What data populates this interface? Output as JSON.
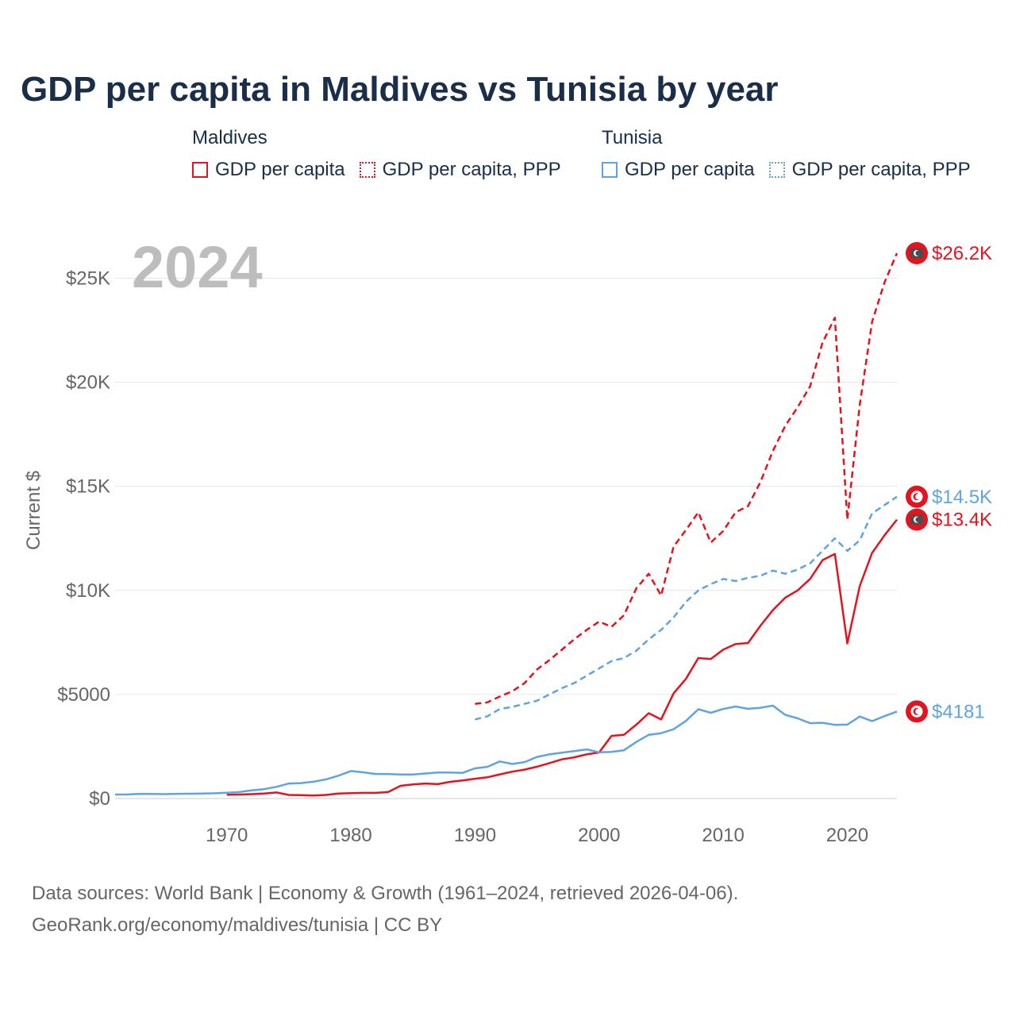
{
  "title": "GDP per capita in Maldives vs Tunisia by year",
  "legend": {
    "groups": [
      {
        "country": "Maldives",
        "color": "#e3131f",
        "items": [
          {
            "label": "GDP per capita",
            "style": "solid"
          },
          {
            "label": "GDP per capita, PPP",
            "style": "dotted"
          }
        ]
      },
      {
        "country": "Tunisia",
        "color": "#5fa4e0",
        "items": [
          {
            "label": "GDP per capita",
            "style": "solid"
          },
          {
            "label": "GDP per capita, PPP",
            "style": "dotted"
          }
        ]
      }
    ]
  },
  "watermark_year": "2024",
  "footer": {
    "line1": "Data sources: World Bank | Economy & Growth (1961–2024, retrieved 2026-04-06).",
    "line2": "GeoRank.org/economy/maldives/tunisia | CC BY"
  },
  "chart_data": {
    "type": "line",
    "title": "GDP per capita in Maldives vs Tunisia by year",
    "xlabel": "",
    "ylabel": "Current $",
    "xlim": [
      1961,
      2024
    ],
    "ylim": [
      0,
      27000
    ],
    "x_ticks": [
      1970,
      1980,
      1990,
      2000,
      2010,
      2020
    ],
    "y_ticks": [
      {
        "value": 0,
        "label": "$0"
      },
      {
        "value": 5000,
        "label": "$5000"
      },
      {
        "value": 10000,
        "label": "$10K"
      },
      {
        "value": 15000,
        "label": "$15K"
      },
      {
        "value": 20000,
        "label": "$20K"
      },
      {
        "value": 25000,
        "label": "$25K"
      }
    ],
    "grid": true,
    "series": [
      {
        "name": "Maldives GDP per capita, PPP",
        "country": "Maldives",
        "color": "#e3131f",
        "dash": true,
        "end_label": "$26.2K",
        "flag": "mv",
        "x": [
          1990,
          1991,
          1992,
          1993,
          1994,
          1995,
          1996,
          1997,
          1998,
          1999,
          2000,
          2001,
          2002,
          2003,
          2004,
          2005,
          2006,
          2007,
          2008,
          2009,
          2010,
          2011,
          2012,
          2013,
          2014,
          2015,
          2016,
          2017,
          2018,
          2019,
          2020,
          2021,
          2022,
          2023,
          2024
        ],
        "y": [
          4550,
          4620,
          4900,
          5150,
          5550,
          6200,
          6650,
          7150,
          7650,
          8100,
          8500,
          8250,
          8800,
          10100,
          10800,
          9750,
          12100,
          12900,
          13750,
          12300,
          12850,
          13750,
          14050,
          15200,
          16700,
          17900,
          18800,
          19800,
          21900,
          23100,
          13400,
          18900,
          22900,
          24800,
          26200
        ]
      },
      {
        "name": "Tunisia GDP per capita, PPP",
        "country": "Tunisia",
        "color": "#5fa4e0",
        "dash": true,
        "end_label": "$14.5K",
        "flag": "tn",
        "x": [
          1990,
          1991,
          1992,
          1993,
          1994,
          1995,
          1996,
          1997,
          1998,
          1999,
          2000,
          2001,
          2002,
          2003,
          2004,
          2005,
          2006,
          2007,
          2008,
          2009,
          2010,
          2011,
          2012,
          2013,
          2014,
          2015,
          2016,
          2017,
          2018,
          2019,
          2020,
          2021,
          2022,
          2023,
          2024
        ],
        "y": [
          3800,
          3950,
          4300,
          4400,
          4550,
          4700,
          5000,
          5300,
          5550,
          5900,
          6250,
          6600,
          6750,
          7100,
          7650,
          8100,
          8700,
          9450,
          10000,
          10300,
          10550,
          10450,
          10600,
          10700,
          10950,
          10800,
          11000,
          11300,
          11900,
          12500,
          11900,
          12400,
          13700,
          14100,
          14500
        ]
      },
      {
        "name": "Maldives GDP per capita",
        "country": "Maldives",
        "color": "#e3131f",
        "dash": false,
        "end_label": "$13.4K",
        "flag": "mv",
        "x": [
          1970,
          1971,
          1972,
          1973,
          1974,
          1975,
          1976,
          1977,
          1978,
          1979,
          1980,
          1981,
          1982,
          1983,
          1984,
          1985,
          1986,
          1987,
          1988,
          1989,
          1990,
          1991,
          1992,
          1993,
          1994,
          1995,
          1996,
          1997,
          1998,
          1999,
          2000,
          2001,
          2002,
          2003,
          2004,
          2005,
          2006,
          2007,
          2008,
          2009,
          2010,
          2011,
          2012,
          2013,
          2014,
          2015,
          2016,
          2017,
          2018,
          2019,
          2020,
          2021,
          2022,
          2023,
          2024
        ],
        "y": [
          180,
          190,
          210,
          240,
          290,
          170,
          160,
          140,
          170,
          240,
          260,
          270,
          270,
          310,
          610,
          680,
          720,
          690,
          800,
          870,
          950,
          1020,
          1160,
          1290,
          1390,
          1530,
          1700,
          1880,
          1980,
          2120,
          2210,
          3010,
          3060,
          3550,
          4100,
          3800,
          5050,
          5750,
          6750,
          6700,
          7150,
          7420,
          7470,
          8300,
          9050,
          9650,
          10000,
          10550,
          11450,
          11750,
          7450,
          10200,
          11800,
          12650,
          13400
        ]
      },
      {
        "name": "Tunisia GDP per capita",
        "country": "Tunisia",
        "color": "#5fa4e0",
        "dash": false,
        "end_label": "$4181",
        "flag": "tn",
        "x": [
          1961,
          1962,
          1963,
          1964,
          1965,
          1966,
          1967,
          1968,
          1969,
          1970,
          1971,
          1972,
          1973,
          1974,
          1975,
          1976,
          1977,
          1978,
          1979,
          1980,
          1981,
          1982,
          1983,
          1984,
          1985,
          1986,
          1987,
          1988,
          1989,
          1990,
          1991,
          1992,
          1993,
          1994,
          1995,
          1996,
          1997,
          1998,
          1999,
          2000,
          2001,
          2002,
          2003,
          2004,
          2005,
          2006,
          2007,
          2008,
          2009,
          2010,
          2011,
          2012,
          2013,
          2014,
          2015,
          2016,
          2017,
          2018,
          2019,
          2020,
          2021,
          2022,
          2023,
          2024
        ],
        "y": [
          190,
          195,
          225,
          220,
          210,
          225,
          230,
          240,
          250,
          280,
          310,
          390,
          450,
          560,
          720,
          740,
          810,
          920,
          1100,
          1320,
          1260,
          1180,
          1180,
          1150,
          1150,
          1200,
          1250,
          1250,
          1230,
          1450,
          1520,
          1780,
          1660,
          1750,
          2000,
          2120,
          2200,
          2280,
          2360,
          2220,
          2240,
          2320,
          2720,
          3060,
          3140,
          3330,
          3730,
          4290,
          4120,
          4300,
          4420,
          4310,
          4360,
          4460,
          4020,
          3850,
          3620,
          3640,
          3540,
          3550,
          3940,
          3720,
          3960,
          4181
        ]
      }
    ],
    "annotations": [
      {
        "text": "2024",
        "role": "current-year-watermark"
      }
    ]
  }
}
